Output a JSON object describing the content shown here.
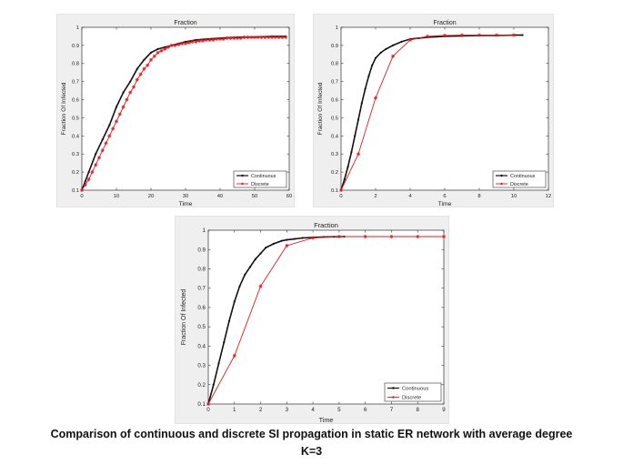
{
  "caption": {
    "line1": "Comparison of continuous and discrete SI propagation in static ER network with average degree",
    "line2": "K=3"
  },
  "colors": {
    "continuous": "#111111",
    "discrete": "#e8191c",
    "panel_bg": "#efefef"
  },
  "chart_data": [
    {
      "type": "line",
      "title": "Fraction",
      "xlabel": "Time",
      "ylabel": "Fraction Of Infected",
      "xlim": [
        0,
        60
      ],
      "ylim": [
        0.1,
        1
      ],
      "xticks": [
        0,
        10,
        20,
        30,
        40,
        50,
        60
      ],
      "yticks": [
        0.1,
        0.2,
        0.3,
        0.4,
        0.5,
        0.6,
        0.7,
        0.8,
        0.9,
        1
      ],
      "legend_position": "bottom-right",
      "series": [
        {
          "name": "Continuous",
          "marker": "dot",
          "x": [
            0,
            1,
            2,
            4,
            6,
            8,
            10,
            12,
            14,
            16,
            18,
            20,
            22,
            24,
            26,
            28,
            30,
            33,
            36,
            40,
            45,
            50,
            55,
            59
          ],
          "y": [
            0.1,
            0.15,
            0.2,
            0.3,
            0.38,
            0.46,
            0.56,
            0.64,
            0.7,
            0.77,
            0.82,
            0.86,
            0.88,
            0.89,
            0.9,
            0.91,
            0.92,
            0.93,
            0.935,
            0.94,
            0.945,
            0.945,
            0.95,
            0.95
          ]
        },
        {
          "name": "Discrete",
          "marker": "asterisk",
          "x": [
            0,
            1,
            2,
            3,
            4,
            5,
            6,
            7,
            8,
            9,
            10,
            11,
            12,
            13,
            14,
            15,
            16,
            17,
            18,
            19,
            20,
            21,
            22,
            23,
            24,
            25,
            26,
            27,
            28,
            29,
            30,
            31,
            32,
            33,
            34,
            35,
            36,
            37,
            38,
            39,
            40,
            41,
            42,
            43,
            44,
            45,
            46,
            47,
            48,
            49,
            50,
            51,
            52,
            53,
            54,
            55,
            56,
            57,
            58,
            59
          ],
          "y": [
            0.1,
            0.13,
            0.16,
            0.2,
            0.24,
            0.28,
            0.32,
            0.36,
            0.4,
            0.44,
            0.48,
            0.52,
            0.56,
            0.6,
            0.64,
            0.67,
            0.71,
            0.74,
            0.77,
            0.79,
            0.82,
            0.84,
            0.86,
            0.87,
            0.88,
            0.89,
            0.9,
            0.9,
            0.905,
            0.91,
            0.91,
            0.915,
            0.92,
            0.92,
            0.925,
            0.925,
            0.93,
            0.93,
            0.93,
            0.935,
            0.935,
            0.935,
            0.94,
            0.94,
            0.94,
            0.94,
            0.94,
            0.945,
            0.945,
            0.945,
            0.945,
            0.945,
            0.945,
            0.945,
            0.945,
            0.945,
            0.945,
            0.945,
            0.945,
            0.945
          ]
        }
      ]
    },
    {
      "type": "line",
      "title": "Fraction",
      "xlabel": "Time",
      "ylabel": "Fraction Of Infected",
      "xlim": [
        0,
        12
      ],
      "ylim": [
        0.1,
        1
      ],
      "xticks": [
        0,
        2,
        4,
        6,
        8,
        10,
        12
      ],
      "yticks": [
        0.1,
        0.2,
        0.3,
        0.4,
        0.5,
        0.6,
        0.7,
        0.8,
        0.9,
        1
      ],
      "legend_position": "bottom-right",
      "series": [
        {
          "name": "Continuous",
          "marker": "dot",
          "x": [
            0,
            0.2,
            0.4,
            0.6,
            0.8,
            1.0,
            1.2,
            1.4,
            1.6,
            1.8,
            2.0,
            2.3,
            2.6,
            3.0,
            3.5,
            4.0,
            4.5,
            5.0,
            6.0,
            7.0,
            8.0,
            9.0,
            10.0,
            10.5
          ],
          "y": [
            0.1,
            0.16,
            0.23,
            0.31,
            0.4,
            0.49,
            0.58,
            0.66,
            0.73,
            0.79,
            0.83,
            0.86,
            0.88,
            0.9,
            0.92,
            0.935,
            0.94,
            0.945,
            0.95,
            0.952,
            0.955,
            0.955,
            0.957,
            0.957
          ]
        },
        {
          "name": "Discrete",
          "marker": "asterisk",
          "x": [
            0,
            1,
            2,
            3,
            4,
            5,
            6,
            7,
            8,
            9,
            10
          ],
          "y": [
            0.1,
            0.3,
            0.61,
            0.84,
            0.93,
            0.95,
            0.955,
            0.957,
            0.957,
            0.957,
            0.957
          ]
        }
      ]
    },
    {
      "type": "line",
      "title": "Fraction",
      "xlabel": "Time",
      "ylabel": "Fraction Of Infected",
      "xlim": [
        0,
        9
      ],
      "ylim": [
        0.1,
        1
      ],
      "xticks": [
        0,
        1,
        2,
        3,
        4,
        5,
        6,
        7,
        8,
        9
      ],
      "yticks": [
        0.1,
        0.2,
        0.3,
        0.4,
        0.5,
        0.6,
        0.7,
        0.8,
        0.9,
        1
      ],
      "legend_position": "bottom-right",
      "series": [
        {
          "name": "Continuous",
          "marker": "dot",
          "x": [
            0,
            0.2,
            0.4,
            0.6,
            0.8,
            1.0,
            1.2,
            1.4,
            1.6,
            1.8,
            2.0,
            2.2,
            2.5,
            2.8,
            3.0,
            3.3,
            3.6,
            4.0,
            4.4,
            4.8,
            5.2
          ],
          "y": [
            0.1,
            0.2,
            0.31,
            0.42,
            0.53,
            0.63,
            0.71,
            0.77,
            0.81,
            0.85,
            0.88,
            0.91,
            0.93,
            0.945,
            0.95,
            0.955,
            0.96,
            0.963,
            0.965,
            0.966,
            0.967
          ]
        },
        {
          "name": "Discrete",
          "marker": "asterisk",
          "x": [
            0,
            1,
            2,
            3,
            4,
            5,
            6,
            7,
            8,
            9
          ],
          "y": [
            0.1,
            0.35,
            0.71,
            0.92,
            0.96,
            0.967,
            0.967,
            0.967,
            0.967,
            0.967
          ]
        }
      ]
    }
  ]
}
